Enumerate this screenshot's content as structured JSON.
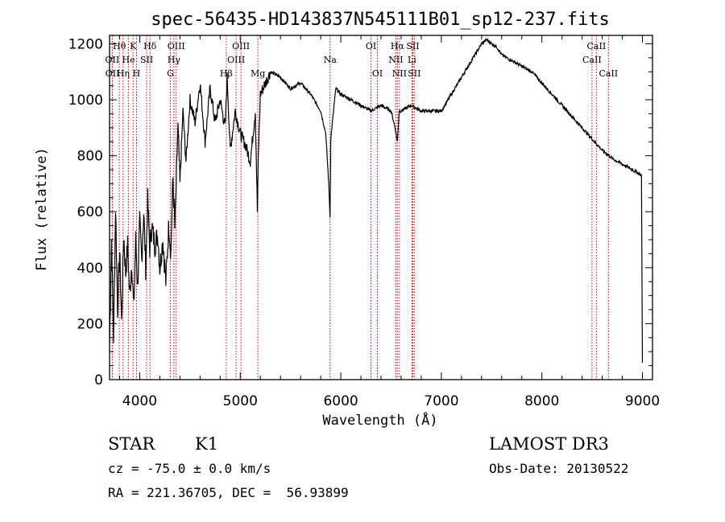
{
  "chart_data": {
    "type": "line",
    "title": "spec-56435-HD143837N545111B01_sp12-237.fits",
    "xlabel": "Wavelength (Å)",
    "ylabel": "Flux (relative)",
    "xlim": [
      3700,
      9100
    ],
    "ylim": [
      0,
      1230
    ],
    "xticks": [
      4000,
      5000,
      6000,
      7000,
      8000,
      9000
    ],
    "yticks": [
      0,
      200,
      400,
      600,
      800,
      1000,
      1200
    ],
    "grid": false,
    "series": [
      {
        "x": [
          3700,
          3720,
          3740,
          3760,
          3780,
          3800,
          3820,
          3840,
          3860,
          3880,
          3900,
          3920,
          3940,
          3960,
          3980,
          4000,
          4020,
          4040,
          4060,
          4080,
          4100,
          4120,
          4150,
          4180,
          4200,
          4230,
          4260,
          4290,
          4310,
          4330,
          4350,
          4380,
          4400,
          4430,
          4460,
          4500,
          4550,
          4600,
          4650,
          4700,
          4750,
          4800,
          4850,
          4870,
          4900,
          4950,
          5000,
          5050,
          5100,
          5150,
          5170,
          5180,
          5200,
          5250,
          5300,
          5400,
          5500,
          5600,
          5700,
          5800,
          5850,
          5880,
          5893,
          5900,
          5950,
          6000,
          6100,
          6200,
          6300,
          6400,
          6500,
          6540,
          6563,
          6580,
          6600,
          6700,
          6800,
          6900,
          7000,
          7100,
          7200,
          7300,
          7400,
          7450,
          7500,
          7550,
          7600,
          7700,
          7800,
          7900,
          8000,
          8100,
          8200,
          8300,
          8400,
          8500,
          8550,
          8600,
          8700,
          8800,
          8900,
          8950,
          8990,
          9000
        ],
        "y": [
          130,
          500,
          150,
          620,
          250,
          460,
          200,
          520,
          380,
          480,
          300,
          420,
          250,
          500,
          330,
          560,
          430,
          600,
          400,
          640,
          470,
          550,
          480,
          520,
          400,
          500,
          350,
          560,
          450,
          720,
          540,
          900,
          700,
          960,
          780,
          1000,
          920,
          1060,
          850,
          1040,
          920,
          1000,
          900,
          1080,
          820,
          960,
          880,
          840,
          780,
          960,
          600,
          800,
          1020,
          1060,
          1100,
          1080,
          1040,
          1060,
          1020,
          960,
          880,
          700,
          580,
          860,
          1040,
          1020,
          1000,
          980,
          960,
          980,
          960,
          900,
          850,
          960,
          960,
          980,
          960,
          960,
          960,
          1020,
          1080,
          1140,
          1200,
          1215,
          1200,
          1190,
          1160,
          1140,
          1120,
          1100,
          1060,
          1020,
          980,
          940,
          900,
          860,
          840,
          820,
          790,
          770,
          750,
          740,
          730,
          60
        ]
      }
    ],
    "line_labels": [
      {
        "text": "Hθ",
        "x": 3797,
        "row": 0
      },
      {
        "text": "K",
        "x": 3934,
        "row": 0
      },
      {
        "text": "Hδ",
        "x": 4102,
        "row": 0
      },
      {
        "text": "OIII",
        "x": 4363,
        "row": 0
      },
      {
        "text": "OIII",
        "x": 5007,
        "row": 0
      },
      {
        "text": "OI",
        "x": 6300,
        "row": 0
      },
      {
        "text": "Hα",
        "x": 6563,
        "row": 0
      },
      {
        "text": "SII",
        "x": 6716,
        "row": 0
      },
      {
        "text": "CaII",
        "x": 8542,
        "row": 0
      },
      {
        "text": "OII",
        "x": 3727,
        "row": 1
      },
      {
        "text": "He",
        "x": 3889,
        "row": 1
      },
      {
        "text": "SII",
        "x": 4069,
        "row": 1
      },
      {
        "text": "Hγ",
        "x": 4340,
        "row": 1
      },
      {
        "text": "OIII",
        "x": 4959,
        "row": 1
      },
      {
        "text": "Na",
        "x": 5893,
        "row": 1
      },
      {
        "text": "NII",
        "x": 6548,
        "row": 1
      },
      {
        "text": "Li",
        "x": 6708,
        "row": 1
      },
      {
        "text": "CaII",
        "x": 8498,
        "row": 1
      },
      {
        "text": "OII",
        "x": 3729,
        "row": 2
      },
      {
        "text": "Hη",
        "x": 3835,
        "row": 2
      },
      {
        "text": "H",
        "x": 3968,
        "row": 2
      },
      {
        "text": "G",
        "x": 4305,
        "row": 2
      },
      {
        "text": "Hβ",
        "x": 4861,
        "row": 2
      },
      {
        "text": "Mg",
        "x": 5175,
        "row": 2
      },
      {
        "text": "OI",
        "x": 6364,
        "row": 2
      },
      {
        "text": "NII",
        "x": 6583,
        "row": 2
      },
      {
        "text": "SII",
        "x": 6731,
        "row": 2
      },
      {
        "text": "CaII",
        "x": 8662,
        "row": 2
      }
    ],
    "line_positions": [
      3727,
      3729,
      3797,
      3835,
      3889,
      3934,
      3968,
      4069,
      4102,
      4305,
      4340,
      4363,
      4861,
      4959,
      5007,
      5175,
      5893,
      6300,
      6364,
      6548,
      6563,
      6583,
      6708,
      6716,
      6731,
      8498,
      8542,
      8662
    ],
    "colors": {
      "spectrum": "#000000",
      "lines": "#d00000"
    }
  },
  "footer": {
    "class_label": "STAR",
    "subclass": "K1",
    "survey": "LAMOST DR3",
    "cz": "cz = -75.0 ± 0.0 km/s",
    "obs_date": "Obs-Date: 20130522",
    "coords": "RA = 221.36705, DEC =  56.93899"
  }
}
